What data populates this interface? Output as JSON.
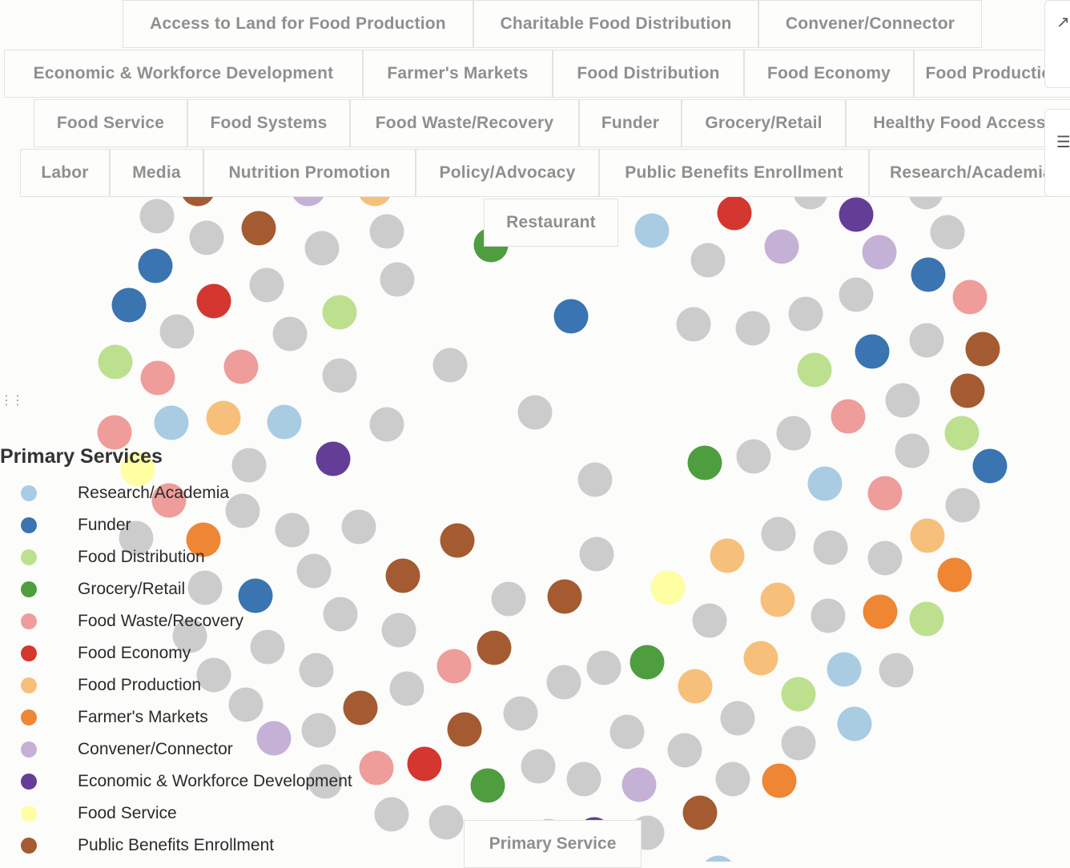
{
  "colors": {
    "research_academia": "#a9cce3",
    "funder": "#3a74b1",
    "food_distribution": "#bde08e",
    "grocery_retail": "#4e9e3f",
    "food_waste_recovery": "#ee9d9a",
    "food_economy": "#d43630",
    "food_production": "#f6c07b",
    "farmers_markets": "#ee8634",
    "convener_connector": "#c5b0d6",
    "economic_workforce": "#643d96",
    "food_service": "#fefea2",
    "public_benefits": "#a45b31",
    "other": "#cccccc"
  },
  "filters": {
    "buttons": [
      {
        "label": "Access to Land for Food Production"
      },
      {
        "label": "Charitable Food Distribution"
      },
      {
        "label": "Convener/Connector"
      },
      {
        "label": "Economic & Workforce Development"
      },
      {
        "label": "Farmer's Markets"
      },
      {
        "label": "Food Distribution"
      },
      {
        "label": "Food Economy"
      },
      {
        "label": "Food Production"
      },
      {
        "label": "Food Service"
      },
      {
        "label": "Food Systems"
      },
      {
        "label": "Food Waste/Recovery"
      },
      {
        "label": "Funder"
      },
      {
        "label": "Grocery/Retail"
      },
      {
        "label": "Healthy Food Access"
      },
      {
        "label": "Labor"
      },
      {
        "label": "Media"
      },
      {
        "label": "Nutrition Promotion"
      },
      {
        "label": "Policy/Advocacy"
      },
      {
        "label": "Public Benefits Enrollment"
      },
      {
        "label": "Research/Academia"
      },
      {
        "label": "Restaurant"
      }
    ]
  },
  "legend": {
    "title": "Primary Services",
    "items": [
      {
        "label": "Research/Academia",
        "color": "#a9cce3"
      },
      {
        "label": "Funder",
        "color": "#3a74b1"
      },
      {
        "label": "Food Distribution",
        "color": "#bde08e"
      },
      {
        "label": "Grocery/Retail",
        "color": "#4e9e3f"
      },
      {
        "label": "Food Waste/Recovery",
        "color": "#ee9d9a"
      },
      {
        "label": "Food Economy",
        "color": "#d43630"
      },
      {
        "label": "Food Production",
        "color": "#f6c07b"
      },
      {
        "label": "Farmer's Markets",
        "color": "#ee8634"
      },
      {
        "label": "Convener/Connector",
        "color": "#c5b0d6"
      },
      {
        "label": "Economic & Workforce Development",
        "color": "#643d96"
      },
      {
        "label": "Food Service",
        "color": "#fefea2"
      },
      {
        "label": "Public Benefits Enrollment",
        "color": "#a45b31"
      }
    ]
  },
  "group_label": "Primary Service"
}
